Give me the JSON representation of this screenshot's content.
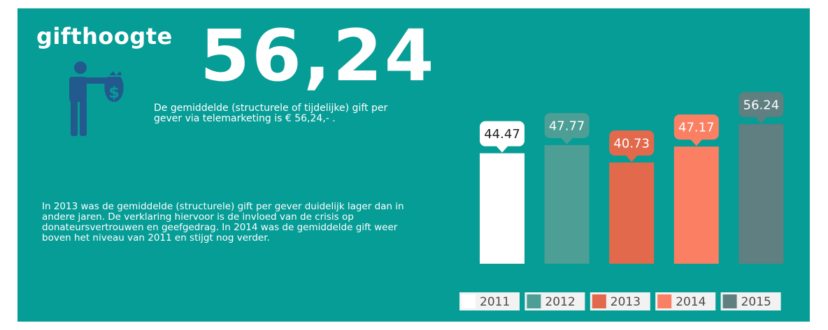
{
  "infographic": {
    "title": "gifthoogte",
    "big_number": "56,24",
    "subtitle": "De gemiddelde (structurele of tijdelijke) gift per gever via telemarketing is  € 56,24,- .",
    "body": "In 2013 was de gemiddelde (structurele) gift per gever duidelijk lager dan in andere jaren. De verklaring hiervoor is de invloed van de crisis op donateursvertrouwen en geefgedrag. In 2014 was de gemiddelde gift weer boven het niveau van 2011 en stijgt nog verder.",
    "icons": [
      "person-icon",
      "money-bag-icon",
      "dollar-sign-icon"
    ]
  },
  "colors": {
    "background": "#069d96",
    "bar_2011": "#ffffff",
    "bar_2012": "#4d9e95",
    "bar_2013": "#e3694c",
    "bar_2014": "#fb7f63",
    "bar_2015": "#5f7f81",
    "icon": "#235a8e"
  },
  "chart_data": {
    "type": "bar",
    "categories": [
      "2011",
      "2012",
      "2013",
      "2014",
      "2015"
    ],
    "values": [
      44.47,
      47.77,
      40.73,
      47.17,
      56.24
    ],
    "data_labels": [
      "44.47",
      "47.77",
      "40.73",
      "47.17",
      "56.24"
    ],
    "legend": [
      "2011",
      "2012",
      "2013",
      "2014",
      "2015"
    ],
    "legend_position": "bottom",
    "grid": false,
    "title": "",
    "xlabel": "",
    "ylabel": ""
  }
}
